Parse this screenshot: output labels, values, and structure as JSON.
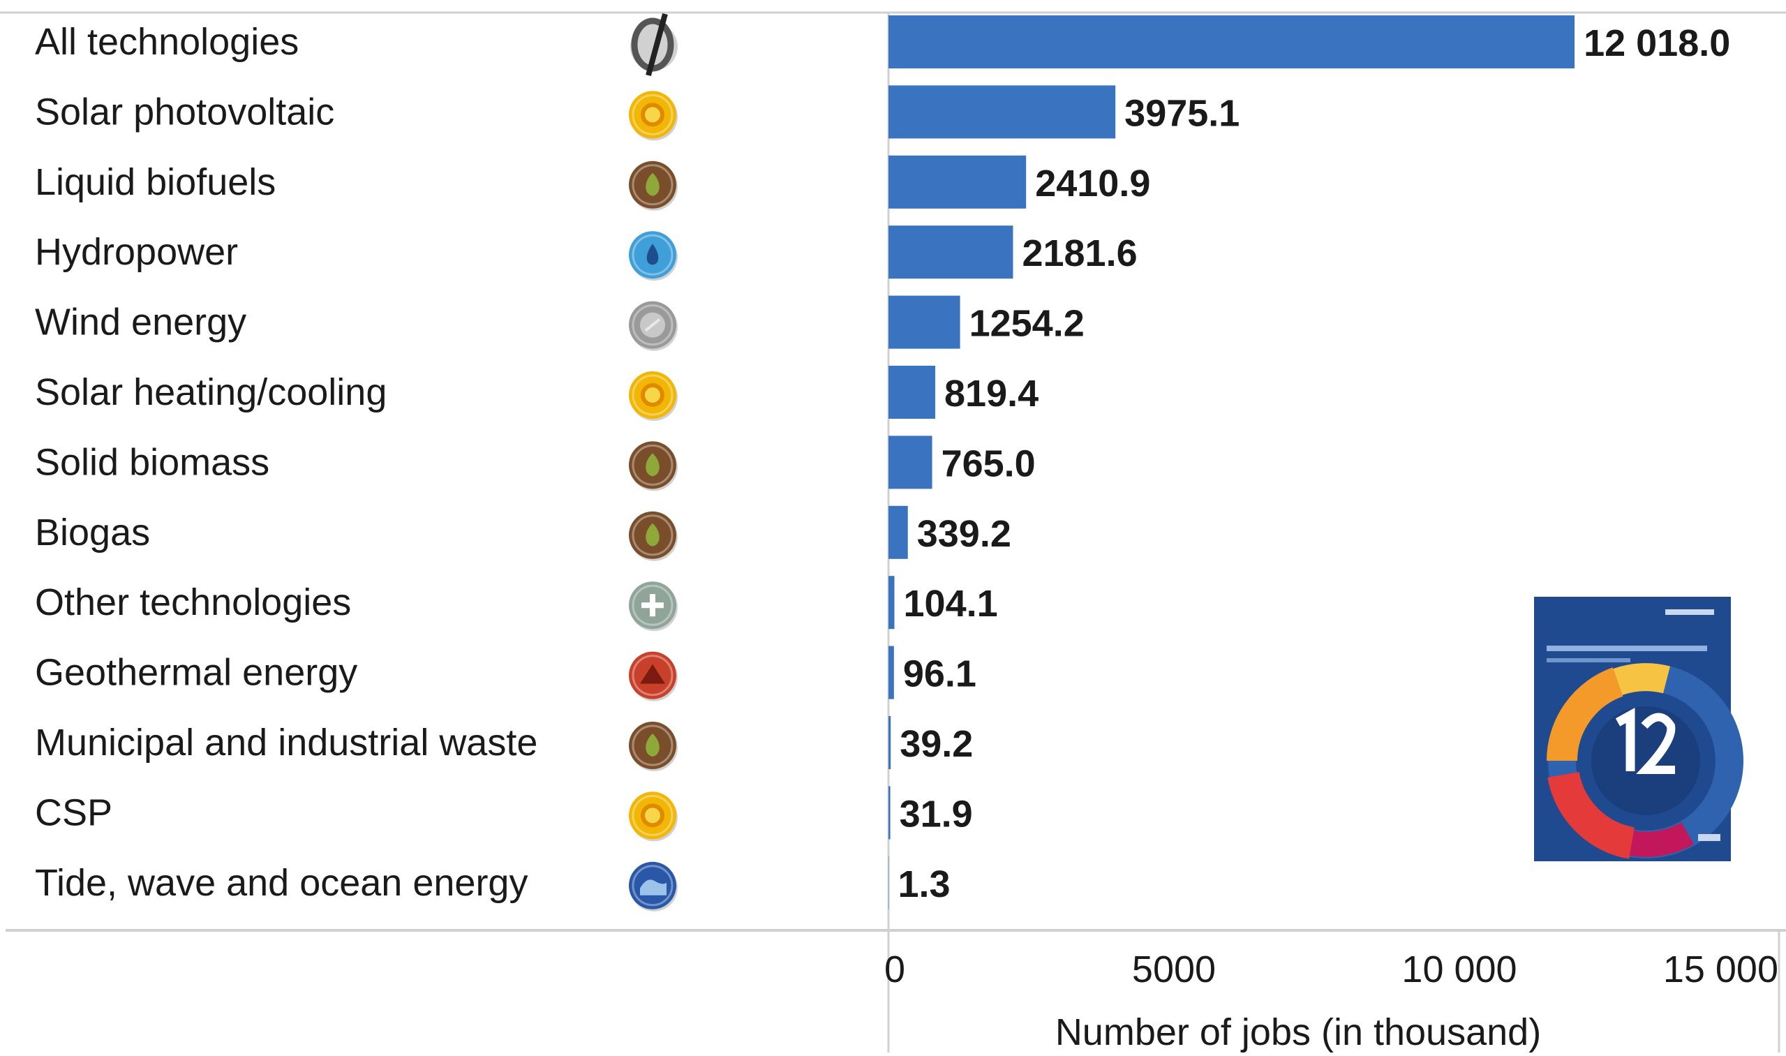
{
  "colors": {
    "bar": "#3a74c1",
    "frame": "#d0d0d0",
    "text": "#1a1a1a"
  },
  "chart_data": {
    "type": "bar",
    "orientation": "horizontal",
    "title": "",
    "xlabel": "Number of jobs (in thousand)",
    "ylabel": "",
    "xlim": [
      0,
      15000
    ],
    "xticks": [
      0,
      5000,
      10000,
      15000
    ],
    "xtick_labels": [
      "0",
      "5000",
      "10 000",
      "15 000"
    ],
    "grid": false,
    "categories": [
      "All technologies",
      "Solar photovoltaic",
      "Liquid biofuels",
      "Hydropower",
      "Wind energy",
      "Solar heating/cooling",
      "Solid biomass",
      "Biogas",
      "Other technologies",
      "Geothermal energy",
      "Municipal and industrial waste",
      "CSP",
      "Tide, wave and ocean energy"
    ],
    "values": [
      12018.0,
      3975.1,
      2410.9,
      2181.6,
      1254.2,
      819.4,
      765.0,
      339.2,
      104.1,
      96.1,
      39.2,
      31.9,
      1.3
    ],
    "value_labels": [
      "12 018.0",
      "3975.1",
      "2410.9",
      "2181.6",
      "1254.2",
      "819.4",
      "765.0",
      "339.2",
      "104.1",
      "96.1",
      "39.2",
      "31.9",
      "1.3"
    ],
    "icons": [
      {
        "name": "all-technologies-icon",
        "color": "#555555"
      },
      {
        "name": "solar-icon",
        "color": "#f2b705"
      },
      {
        "name": "bioenergy-icon",
        "color": "#7a4e2a"
      },
      {
        "name": "hydropower-icon",
        "color": "#3f9fd8"
      },
      {
        "name": "wind-icon",
        "color": "#9a9a9a"
      },
      {
        "name": "solar-icon",
        "color": "#f2b705"
      },
      {
        "name": "bioenergy-icon",
        "color": "#7a4e2a"
      },
      {
        "name": "bioenergy-icon",
        "color": "#7a4e2a"
      },
      {
        "name": "other-technologies-icon",
        "color": "#8fa59a"
      },
      {
        "name": "geothermal-icon",
        "color": "#c8402a"
      },
      {
        "name": "bioenergy-icon",
        "color": "#7a4e2a"
      },
      {
        "name": "solar-icon",
        "color": "#f2b705"
      },
      {
        "name": "ocean-energy-icon",
        "color": "#2a58a8"
      }
    ],
    "inset_image": "report-cover-thumbnail"
  }
}
